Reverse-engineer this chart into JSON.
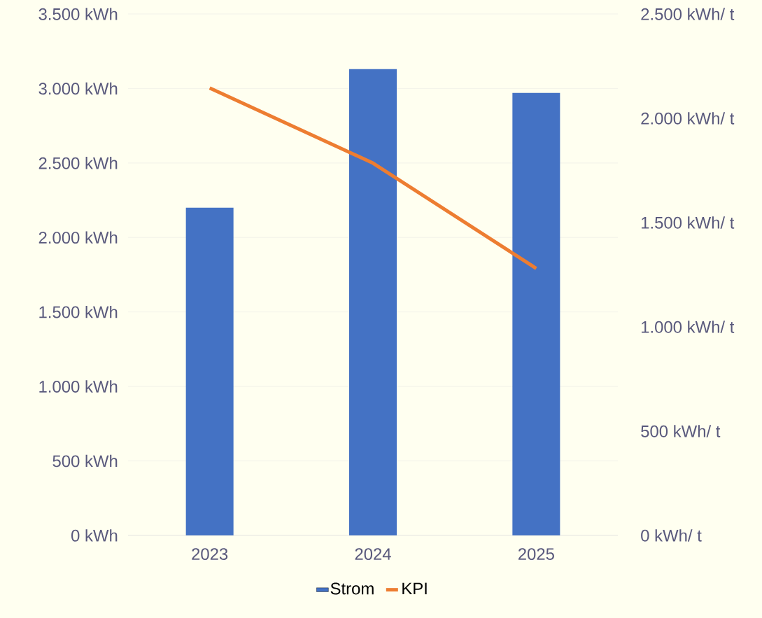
{
  "chart_data": {
    "type": "bar",
    "categories": [
      "2023",
      "2024",
      "2025"
    ],
    "series": [
      {
        "name": "Strom",
        "color": "#4472c4",
        "values": [
          2200,
          3130,
          2970
        ]
      },
      {
        "name": "KPI",
        "type": "line",
        "axis": "y2",
        "color": "#ed7d31",
        "values": [
          2145,
          1785,
          1280
        ]
      }
    ],
    "ylim": [
      0,
      3500
    ],
    "yticks": [
      {
        "value": 0,
        "label": "0 kWh"
      },
      {
        "value": 500,
        "label": "500 kWh"
      },
      {
        "value": 1000,
        "label": "1.000 kWh"
      },
      {
        "value": 1500,
        "label": "1.500 kWh"
      },
      {
        "value": 2000,
        "label": "2.000 kWh"
      },
      {
        "value": 2500,
        "label": "2.500 kWh"
      },
      {
        "value": 3000,
        "label": "3.000 kWh"
      },
      {
        "value": 3500,
        "label": "3.500 kWh"
      }
    ],
    "y2lim": [
      0,
      2500
    ],
    "y2ticks": [
      {
        "value": 0,
        "label": "0 kWh/ t"
      },
      {
        "value": 500,
        "label": "500 kWh/ t"
      },
      {
        "value": 1000,
        "label": "1.000 kWh/ t"
      },
      {
        "value": 1500,
        "label": "1.500 kWh/ t"
      },
      {
        "value": 2000,
        "label": "2.000 kWh/ t"
      },
      {
        "value": 2500,
        "label": "2.500 kWh/ t"
      }
    ],
    "grid": "y",
    "legend": "bottom",
    "marker": "none",
    "line_style": "solid"
  }
}
